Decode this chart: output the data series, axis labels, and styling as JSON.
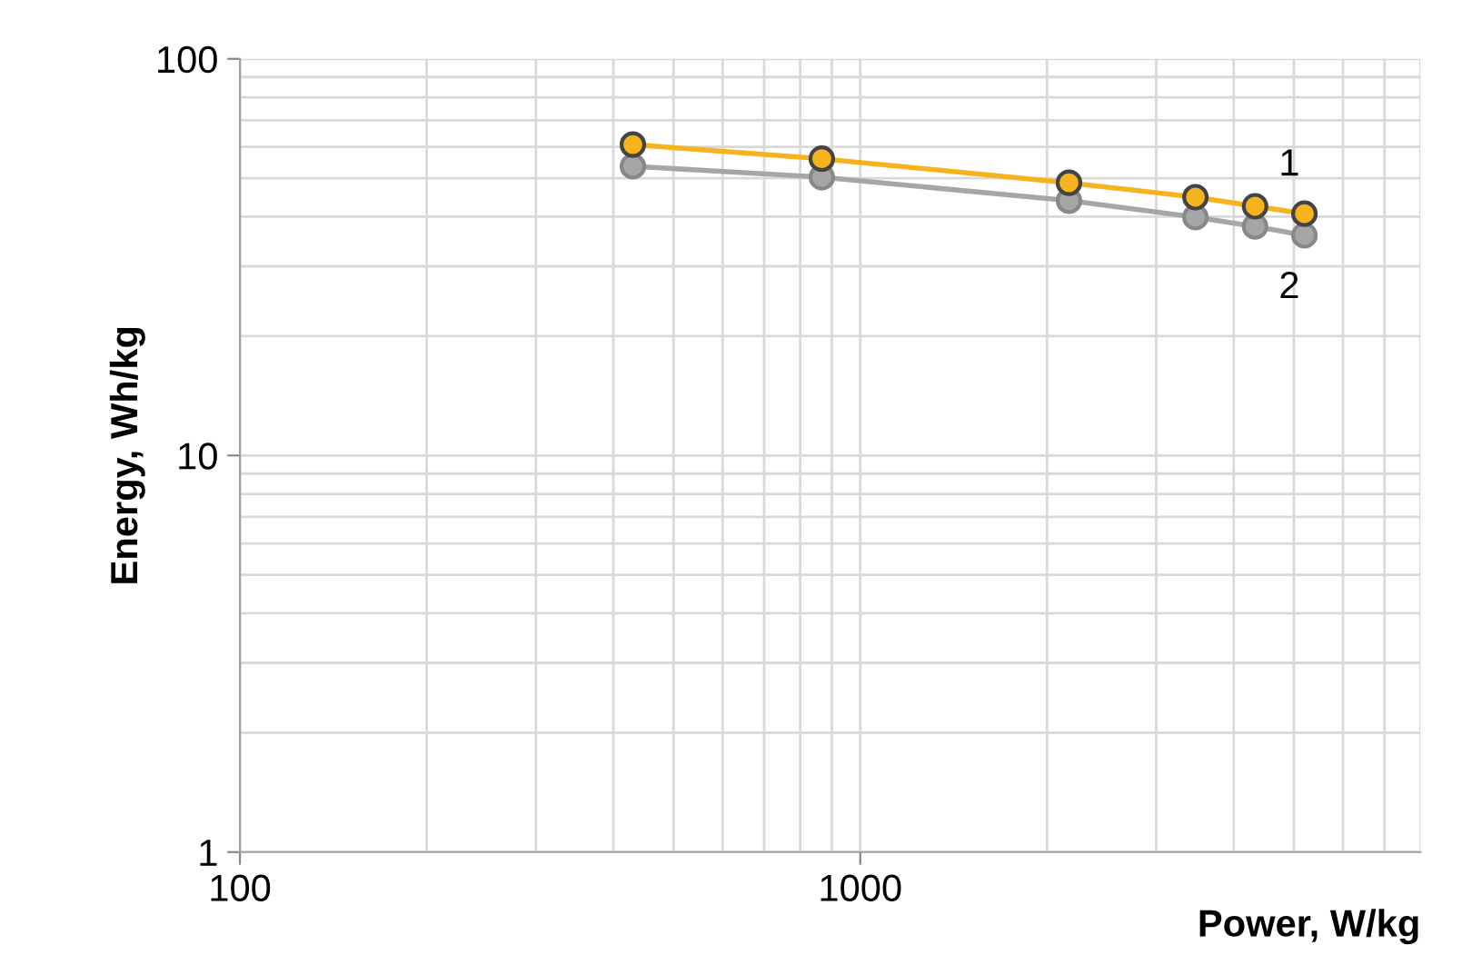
{
  "chart_data": {
    "type": "line",
    "xlabel": "Power, W/kg",
    "ylabel": "Energy, Wh/kg",
    "log": "xy",
    "xlim": [
      100,
      8000
    ],
    "ylim": [
      1,
      100
    ],
    "xticks": [
      100,
      1000
    ],
    "yticks": [
      1,
      10,
      100
    ],
    "grid": true,
    "legend": false,
    "marker": "circle",
    "line_style": "solid",
    "series": [
      {
        "name": "1",
        "color": "#f5b41e",
        "x": [
          430,
          867,
          2170,
          3470,
          4330,
          5200
        ],
        "values": [
          60.8,
          56,
          48.7,
          44.8,
          42.5,
          40.7
        ]
      },
      {
        "name": "2",
        "color": "#a6a6a6",
        "x": [
          430,
          867,
          2170,
          3470,
          4330,
          5200
        ],
        "values": [
          53.6,
          50.3,
          43.9,
          39.9,
          37.8,
          35.9
        ]
      }
    ]
  }
}
